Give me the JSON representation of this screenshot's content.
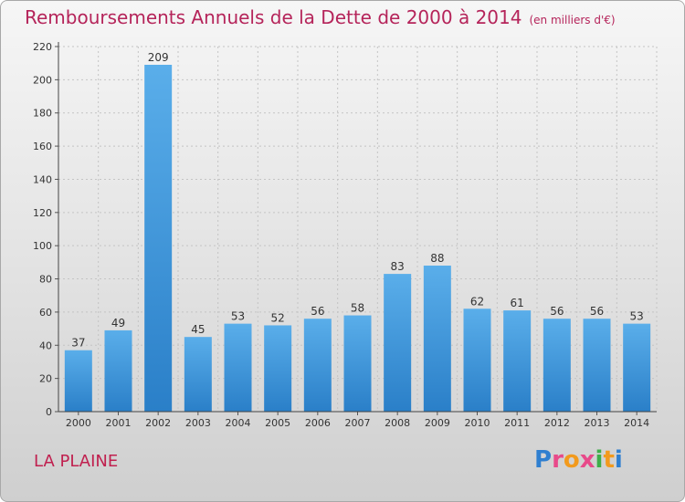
{
  "title": "Remboursements Annuels de la Dette de 2000 à 2014",
  "unit": "(en milliers d'€)",
  "commune": "LA PLAINE",
  "brand": {
    "letters": [
      "P",
      "r",
      "o",
      "x",
      "i",
      "t",
      "i"
    ],
    "colors": [
      "#2f7fd0",
      "#e84a8a",
      "#f29a1d",
      "#e84a8a",
      "#3fae49",
      "#f29a1d",
      "#2f7fd0"
    ]
  },
  "colors": {
    "bar": "#4a9fe0",
    "title": "#b5245a"
  },
  "chart_data": {
    "type": "bar",
    "categories": [
      "2000",
      "2001",
      "2002",
      "2003",
      "2004",
      "2005",
      "2006",
      "2007",
      "2008",
      "2009",
      "2010",
      "2011",
      "2012",
      "2013",
      "2014"
    ],
    "values": [
      37,
      49,
      209,
      45,
      53,
      52,
      56,
      58,
      83,
      88,
      62,
      61,
      56,
      56,
      53
    ],
    "yticks": [
      0,
      20,
      40,
      60,
      80,
      100,
      120,
      140,
      160,
      180,
      200,
      220
    ],
    "ylim": [
      0,
      220
    ],
    "grid": true
  }
}
